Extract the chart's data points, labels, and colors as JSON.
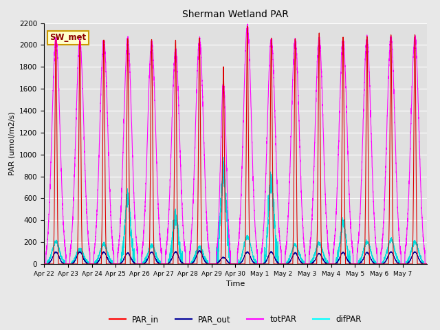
{
  "title": "Sherman Wetland PAR",
  "ylabel": "PAR (umol/m2/s)",
  "xlabel": "Time",
  "ylim": [
    0,
    2200
  ],
  "legend_label": "SW_met",
  "line_colors": {
    "PAR_in": "#dd0000",
    "PAR_out": "#000099",
    "totPAR": "#ff00ff",
    "difPAR": "#00dddd"
  },
  "background_color": "#e8e8e8",
  "plot_bg_color": "#e0e0e0",
  "num_days": 16,
  "tick_labels": [
    "Apr 22",
    "Apr 23",
    "Apr 24",
    "Apr 25",
    "Apr 26",
    "Apr 27",
    "Apr 28",
    "Apr 29",
    "Apr 30",
    "May 1",
    "May 2",
    "May 3",
    "May 4",
    "May 5",
    "May 6",
    "May 7"
  ],
  "day_peaks_PAR_in": [
    2050,
    2040,
    2050,
    2060,
    2050,
    2050,
    2070,
    1800,
    2170,
    2060,
    2060,
    2110,
    2070,
    2080,
    2090,
    2090
  ],
  "day_peaks_totPAR": [
    2050,
    2030,
    2040,
    2050,
    2030,
    1950,
    2050,
    1650,
    2170,
    2050,
    2040,
    2060,
    2050,
    2060,
    2070,
    2070
  ],
  "day_peaks_PAR_out": [
    110,
    110,
    110,
    100,
    110,
    110,
    120,
    60,
    110,
    110,
    100,
    95,
    105,
    105,
    110,
    110
  ],
  "day_peaks_difPAR": [
    200,
    130,
    180,
    600,
    170,
    430,
    155,
    840,
    250,
    760,
    175,
    185,
    380,
    200,
    220,
    200
  ],
  "totPAR_width": [
    0.42,
    0.42,
    0.42,
    0.42,
    0.42,
    0.42,
    0.42,
    0.3,
    0.42,
    0.42,
    0.42,
    0.42,
    0.42,
    0.42,
    0.42,
    0.42
  ],
  "PAR_in_width": [
    0.1,
    0.1,
    0.1,
    0.1,
    0.1,
    0.1,
    0.1,
    0.1,
    0.1,
    0.1,
    0.1,
    0.1,
    0.1,
    0.1,
    0.1,
    0.1
  ],
  "pts_per_day": 288
}
